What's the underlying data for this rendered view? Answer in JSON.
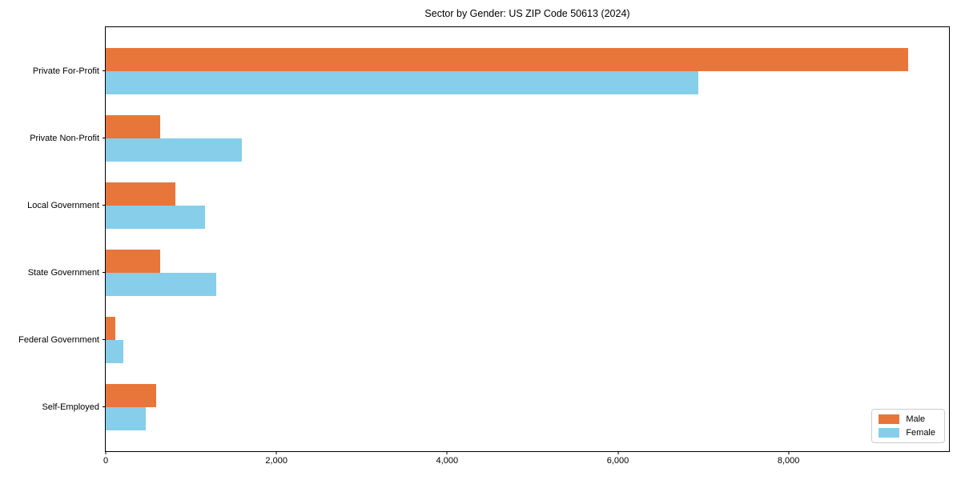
{
  "chart_data": {
    "type": "bar",
    "orientation": "horizontal",
    "title": "Sector by Gender: US ZIP Code 50613 (2024)",
    "categories": [
      "Private For-Profit",
      "Private Non-Profit",
      "Local Government",
      "State Government",
      "Federal Government",
      "Self-Employed"
    ],
    "series": [
      {
        "name": "Male",
        "color": "#e8763b",
        "values": [
          9400,
          640,
          815,
          640,
          110,
          590
        ]
      },
      {
        "name": "Female",
        "color": "#87ceeb",
        "values": [
          6940,
          1590,
          1160,
          1290,
          205,
          470
        ]
      }
    ],
    "xlabel": "",
    "ylabel": "",
    "xlim": [
      0,
      9880
    ],
    "x_ticks": {
      "values": [
        0,
        2000,
        4000,
        6000,
        8000
      ],
      "labels": [
        "0",
        "2,000",
        "4,000",
        "6,000",
        "8,000"
      ]
    },
    "grid": false,
    "legend": {
      "position": "lower right",
      "entries": [
        "Male",
        "Female"
      ]
    }
  }
}
